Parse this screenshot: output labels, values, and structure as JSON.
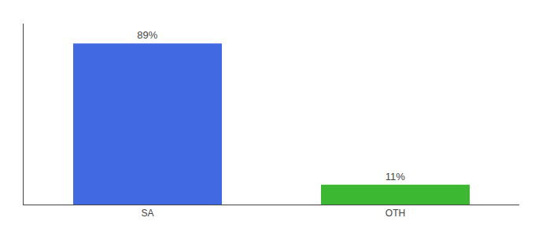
{
  "chart_data": {
    "type": "bar",
    "categories": [
      "SA",
      "OTH"
    ],
    "values": [
      89,
      11
    ],
    "value_labels": [
      "89%",
      "11%"
    ],
    "data_labels": true,
    "colors": [
      "#4169e1",
      "#3db832"
    ],
    "ylim": [
      0,
      100
    ],
    "tick_labels": "x",
    "grid": false
  }
}
